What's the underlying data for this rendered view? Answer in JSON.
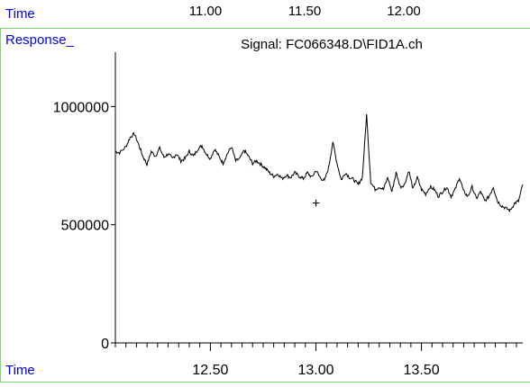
{
  "top_strip": {
    "x_label": "Time",
    "tick_labels": [
      "11.00",
      "11.50",
      "12.00"
    ]
  },
  "chart_data": {
    "type": "line",
    "title": "Signal: FC066348.D\\FID1A.ch",
    "xlabel": "Time",
    "ylabel": "Response_",
    "xlim": [
      12.05,
      13.98
    ],
    "ylim": [
      0,
      1230000
    ],
    "x_ticks": [
      12.5,
      13.0,
      13.5
    ],
    "x_tick_labels": [
      "12.50",
      "13.00",
      "13.50"
    ],
    "y_ticks": [
      0,
      500000,
      1000000
    ],
    "y_tick_labels": [
      "0",
      "500000",
      "1000000"
    ],
    "grid": false,
    "marker": {
      "symbol": "+",
      "x": 13.0,
      "y": 590000
    },
    "series": [
      {
        "x": [
          12.05,
          12.07,
          12.1,
          12.12,
          12.14,
          12.16,
          12.18,
          12.2,
          12.22,
          12.24,
          12.26,
          12.28,
          12.3,
          12.32,
          12.34,
          12.36,
          12.38,
          12.4,
          12.42,
          12.44,
          12.46,
          12.48,
          12.5,
          12.52,
          12.54,
          12.56,
          12.58,
          12.6,
          12.62,
          12.64,
          12.66,
          12.68,
          12.7,
          12.72,
          12.74,
          12.76,
          12.78,
          12.8,
          12.82,
          12.84,
          12.86,
          12.88,
          12.9,
          12.92,
          12.94,
          12.96,
          12.98,
          13.0,
          13.02,
          13.04,
          13.06,
          13.08,
          13.1,
          13.12,
          13.14,
          13.16,
          13.18,
          13.2,
          13.22,
          13.24,
          13.26,
          13.28,
          13.3,
          13.32,
          13.34,
          13.36,
          13.38,
          13.4,
          13.42,
          13.44,
          13.46,
          13.48,
          13.5,
          13.52,
          13.54,
          13.56,
          13.58,
          13.6,
          13.62,
          13.64,
          13.66,
          13.68,
          13.7,
          13.72,
          13.74,
          13.76,
          13.78,
          13.8,
          13.82,
          13.84,
          13.86,
          13.88,
          13.9,
          13.92,
          13.94,
          13.96,
          13.98
        ],
        "y": [
          810000,
          805000,
          830000,
          870000,
          885000,
          840000,
          790000,
          755000,
          810000,
          790000,
          825000,
          785000,
          800000,
          780000,
          800000,
          770000,
          780000,
          810000,
          790000,
          820000,
          835000,
          800000,
          780000,
          820000,
          790000,
          760000,
          800000,
          830000,
          770000,
          780000,
          815000,
          790000,
          760000,
          770000,
          755000,
          740000,
          720000,
          705000,
          715000,
          695000,
          710000,
          700000,
          720000,
          705000,
          695000,
          720000,
          700000,
          730000,
          700000,
          685000,
          740000,
          850000,
          760000,
          690000,
          720000,
          700000,
          690000,
          670000,
          700000,
          965000,
          680000,
          650000,
          660000,
          650000,
          700000,
          640000,
          720000,
          660000,
          670000,
          730000,
          650000,
          700000,
          650000,
          630000,
          660000,
          650000,
          620000,
          640000,
          660000,
          620000,
          650000,
          700000,
          640000,
          620000,
          660000,
          610000,
          640000,
          600000,
          620000,
          660000,
          600000,
          580000,
          570000,
          560000,
          590000,
          600000,
          670000
        ]
      }
    ]
  }
}
